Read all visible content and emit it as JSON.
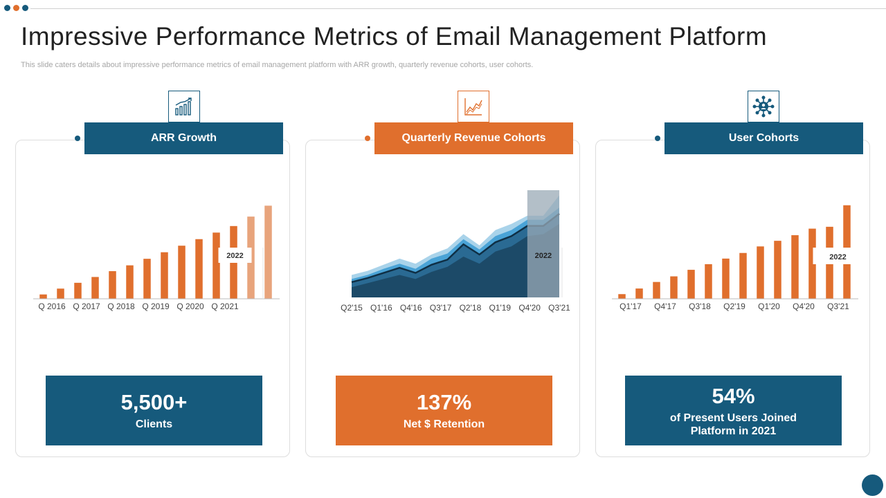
{
  "colors": {
    "navy": "#165a7c",
    "orange": "#e06f2d",
    "light_orange": "#e8a47c",
    "area_dark": "#1c4a68",
    "area_mid": "#2a6a93",
    "area_light": "#4aa3d6",
    "area_pale": "#a9d3ea",
    "highlight": "#9aa9b5"
  },
  "header": {
    "title": "Impressive Performance Metrics of Email Management Platform",
    "subtitle": "This slide caters details about impressive performance metrics of email management platform with ARR growth, quarterly revenue cohorts, user cohorts."
  },
  "panels": [
    {
      "icon": "bar-growth-icon",
      "heading": "ARR Growth",
      "stat_value": "5,500+",
      "stat_label": "Clients"
    },
    {
      "icon": "line-chart-icon",
      "heading": "Quarterly Revenue Cohorts",
      "stat_value": "137%",
      "stat_label": "Net $ Retention"
    },
    {
      "icon": "user-network-icon",
      "heading": "User Cohorts",
      "stat_value": "54%",
      "stat_label": "of Present Users Joined Platform in 2021"
    }
  ],
  "chart_data": [
    {
      "type": "bar",
      "categories": [
        "Q 2016",
        "",
        "Q 2017",
        "",
        "Q 2018",
        "",
        "Q 2019",
        "",
        "Q 2020",
        "",
        "Q 2021",
        "",
        "",
        ""
      ],
      "tick_labels": [
        "Q 2016",
        "Q 2017",
        "Q 2018",
        "Q 2019",
        "Q 2020",
        "Q 2021"
      ],
      "values": [
        6,
        14,
        22,
        30,
        38,
        46,
        55,
        64,
        73,
        82,
        91,
        100,
        113,
        128
      ],
      "highlight_from": 12,
      "annotation": "2022",
      "ylim": [
        0,
        135
      ]
    },
    {
      "type": "area",
      "tick_labels": [
        "Q2'15",
        "Q1'16",
        "Q4'16",
        "Q3'17",
        "Q2'18",
        "Q1'19",
        "Q4'20",
        "Q3'21"
      ],
      "x": [
        0,
        1,
        2,
        3,
        4,
        5,
        6,
        7,
        8,
        9,
        10,
        11,
        12,
        13
      ],
      "series": [
        {
          "values": [
            10,
            14,
            18,
            22,
            18,
            25,
            30,
            40,
            33,
            45,
            50,
            60,
            62,
            72
          ]
        },
        {
          "values": [
            15,
            19,
            24,
            29,
            24,
            32,
            37,
            52,
            42,
            54,
            60,
            70,
            70,
            82
          ]
        },
        {
          "values": [
            18,
            22,
            28,
            33,
            28,
            38,
            43,
            57,
            47,
            60,
            66,
            76,
            76,
            88
          ]
        },
        {
          "values": [
            22,
            26,
            32,
            38,
            33,
            42,
            48,
            62,
            51,
            66,
            72,
            80,
            80,
            100
          ]
        }
      ],
      "highlight_from": 11,
      "annotation": "2022",
      "ylim": [
        0,
        105
      ]
    },
    {
      "type": "bar",
      "categories": [
        "Q1'17",
        "",
        "Q4'17",
        "",
        "Q3'18",
        "",
        "Q2'19",
        "",
        "Q1'20",
        "",
        "Q4'20",
        "",
        "Q3'21",
        ""
      ],
      "tick_labels": [
        "Q1'17",
        "Q4'17",
        "Q3'18",
        "Q2'19",
        "Q1'20",
        "Q4'20",
        "Q3'21"
      ],
      "values": [
        5,
        11,
        18,
        24,
        31,
        37,
        43,
        49,
        56,
        62,
        68,
        75,
        77,
        100
      ],
      "annotation": "2022",
      "ylim": [
        0,
        105
      ]
    }
  ]
}
